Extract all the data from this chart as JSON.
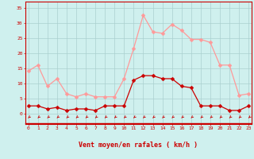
{
  "hours": [
    0,
    1,
    2,
    3,
    4,
    5,
    6,
    7,
    8,
    9,
    10,
    11,
    12,
    13,
    14,
    15,
    16,
    17,
    18,
    19,
    20,
    21,
    22,
    23
  ],
  "wind_avg": [
    2.5,
    2.5,
    1.5,
    2.0,
    1.0,
    1.5,
    1.5,
    1.0,
    2.5,
    2.5,
    2.5,
    11.0,
    12.5,
    12.5,
    11.5,
    11.5,
    9.0,
    8.5,
    2.5,
    2.5,
    2.5,
    1.0,
    1.0,
    2.5
  ],
  "wind_gust": [
    14.0,
    16.0,
    9.0,
    11.5,
    6.5,
    5.5,
    6.5,
    5.5,
    5.5,
    5.5,
    11.5,
    21.5,
    32.5,
    27.0,
    26.5,
    29.5,
    27.5,
    24.5,
    24.5,
    23.5,
    16.0,
    16.0,
    6.0,
    6.5
  ],
  "avg_color": "#cc0000",
  "gust_color": "#ff9999",
  "bg_color": "#cff0ee",
  "grid_color": "#aacfcf",
  "xlabel": "Vent moyen/en rafales ( km/h )",
  "yticks": [
    0,
    5,
    10,
    15,
    20,
    25,
    30,
    35
  ],
  "xticks": [
    0,
    1,
    2,
    3,
    4,
    5,
    6,
    7,
    8,
    9,
    10,
    11,
    12,
    13,
    14,
    15,
    16,
    17,
    18,
    19,
    20,
    21,
    22,
    23
  ],
  "ylim": [
    -3.5,
    37
  ],
  "tick_color": "#cc0000",
  "marker_size": 2.5
}
